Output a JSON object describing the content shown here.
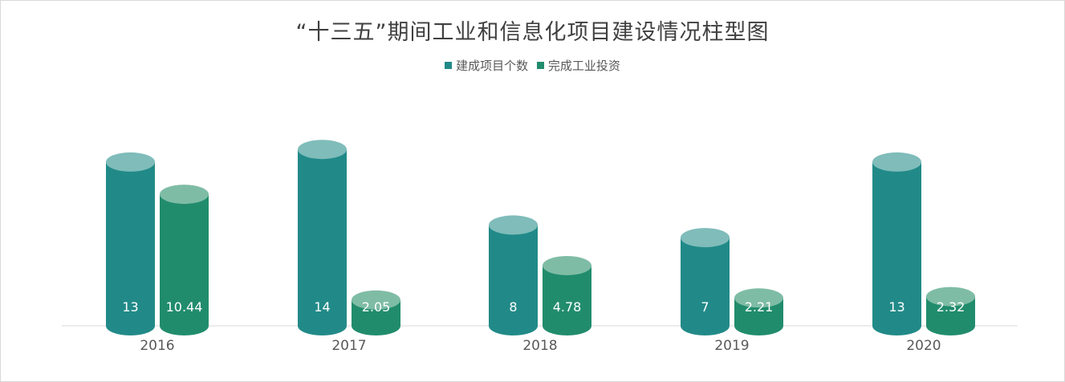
{
  "chart_data": {
    "type": "bar",
    "title": "“十三五”期间工业和信息化项目建设情况柱型图",
    "categories": [
      "2016",
      "2017",
      "2018",
      "2019",
      "2020"
    ],
    "series": [
      {
        "name": "建成项目个数",
        "values": [
          13,
          14,
          8,
          7,
          13
        ],
        "color": "#218a88",
        "top_color": "#7fbcba"
      },
      {
        "name": "完成工业投资",
        "values": [
          10.44,
          2.05,
          4.78,
          2.21,
          2.32
        ],
        "color": "#218c6c",
        "top_color": "#7fbca6"
      }
    ],
    "value_labels": [
      [
        "13",
        "14",
        "8",
        "7",
        "13"
      ],
      [
        "10.44",
        "2.05",
        "4.78",
        "2.21",
        "2.32"
      ]
    ],
    "xlabel": "",
    "ylabel": "",
    "legend_position": "top-center",
    "grid": false
  }
}
